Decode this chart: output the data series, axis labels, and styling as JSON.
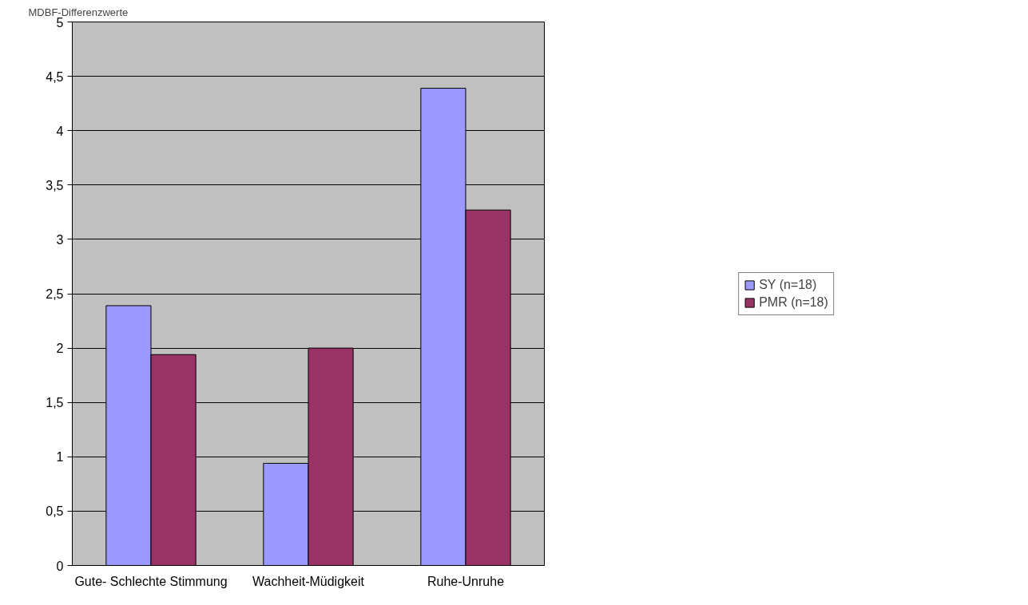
{
  "chart_data": {
    "type": "bar",
    "ylabel": "MDBF-Differenzwerte",
    "categories": [
      "Gute- Schlechte Stimmung",
      "Wachheit-Müdigkeit",
      "Ruhe-Unruhe"
    ],
    "series": [
      {
        "name": "SY (n=18)",
        "color": "#9999ff",
        "values": [
          2.39,
          0.94,
          4.39
        ]
      },
      {
        "name": "PMR (n=18)",
        "color": "#993366",
        "values": [
          1.94,
          2.0,
          3.27
        ]
      }
    ],
    "ylim": [
      0,
      5
    ],
    "yticks": [
      0,
      {
        "value": 0.5,
        "label": "0,5"
      },
      1,
      {
        "value": 1.5,
        "label": "1,5"
      },
      2,
      {
        "value": 2.5,
        "label": "2,5"
      },
      3,
      {
        "value": 3.5,
        "label": "3,5"
      },
      4,
      {
        "value": 4.5,
        "label": "4,5"
      },
      5
    ],
    "grid": "y",
    "legend": "right"
  }
}
